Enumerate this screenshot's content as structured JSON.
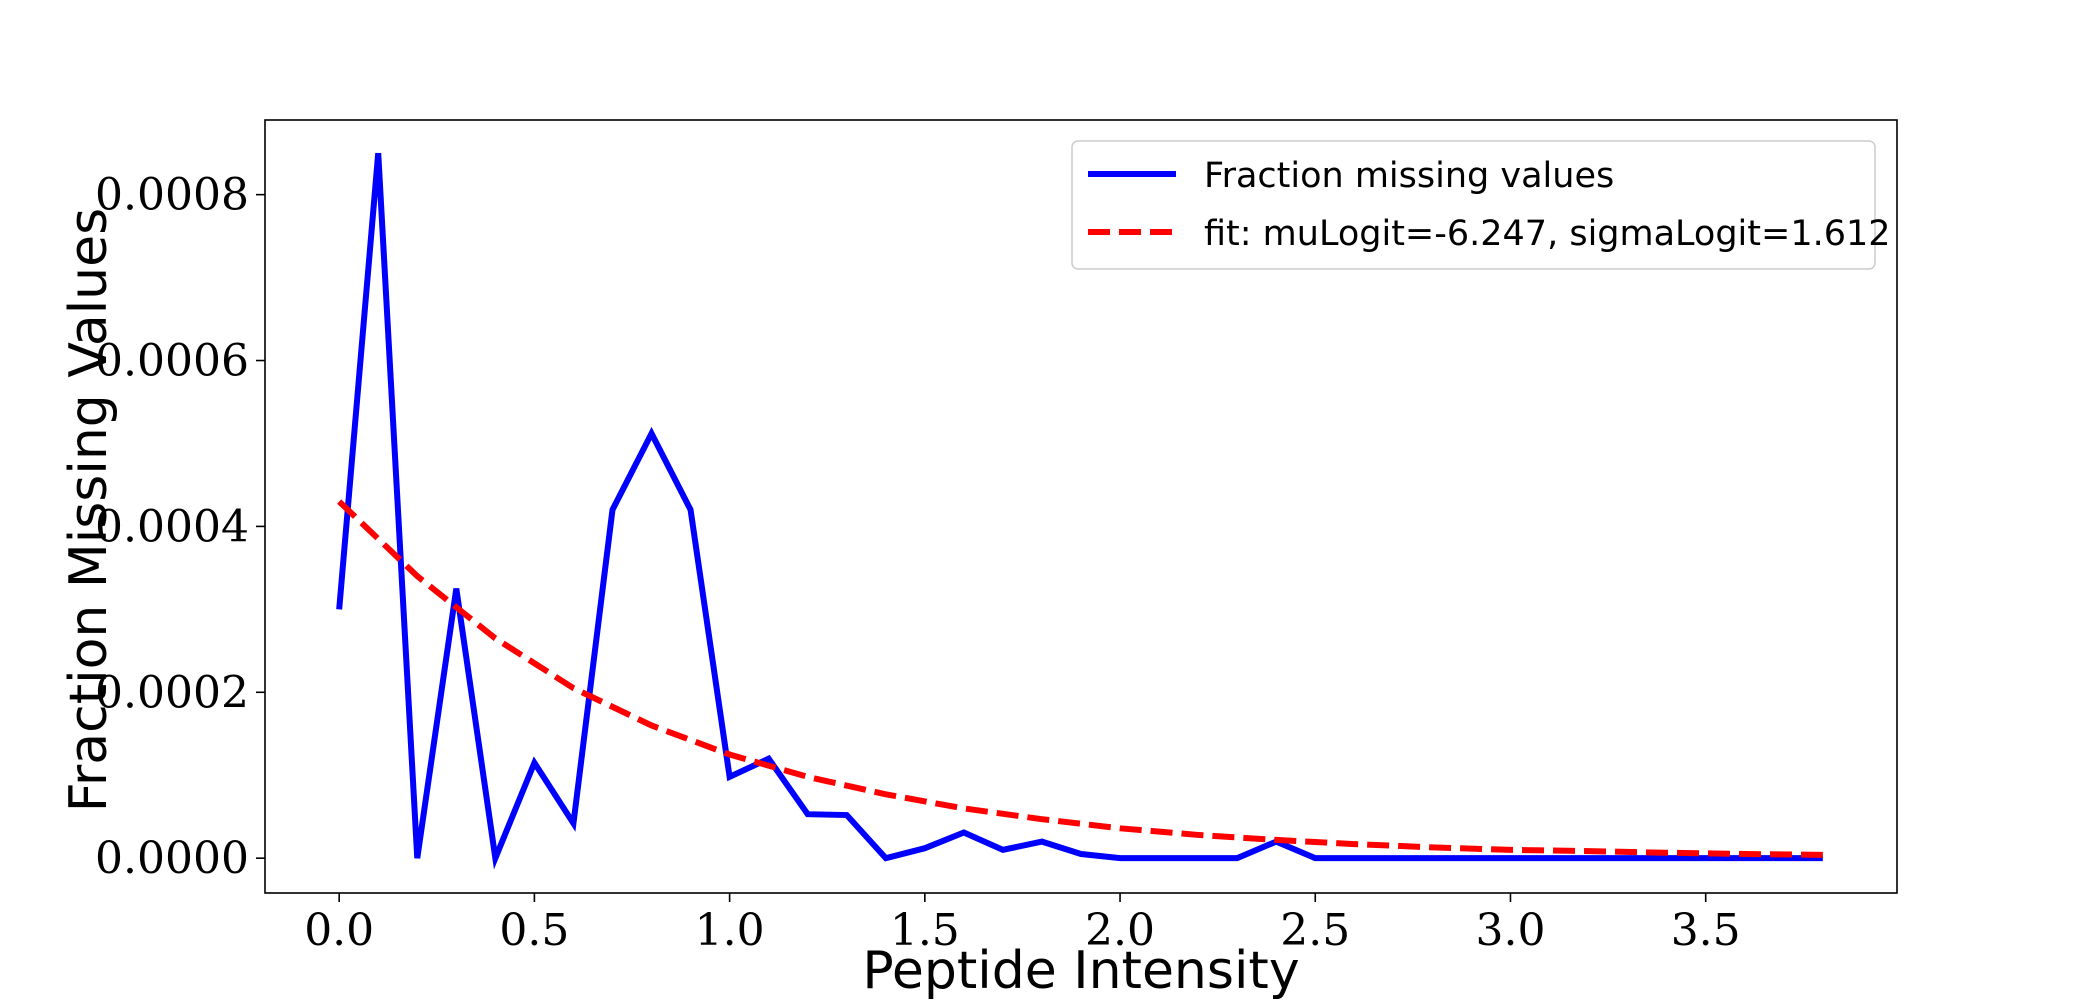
{
  "chart_data": {
    "type": "line",
    "title": "",
    "xlabel": "Peptide Intensity",
    "ylabel": "Fraction Missing Values",
    "xlim": [
      -0.19,
      3.99
    ],
    "ylim": [
      -4.2e-05,
      0.00089
    ],
    "xticks": [
      0.0,
      0.5,
      1.0,
      1.5,
      2.0,
      2.5,
      3.0,
      3.5
    ],
    "xtick_labels": [
      "0.0",
      "0.5",
      "1.0",
      "1.5",
      "2.0",
      "2.5",
      "3.0",
      "3.5"
    ],
    "yticks": [
      0.0,
      0.0002,
      0.0004,
      0.0006,
      0.0008
    ],
    "ytick_labels": [
      "0.0000",
      "0.0002",
      "0.0004",
      "0.0006",
      "0.0008"
    ],
    "grid": false,
    "legend_position": "top-right",
    "series": [
      {
        "name": "Fraction missing values",
        "color": "#0000ff",
        "style": "solid",
        "x": [
          0.0,
          0.1,
          0.2,
          0.3,
          0.4,
          0.5,
          0.6,
          0.7,
          0.8,
          0.9,
          1.0,
          1.1,
          1.2,
          1.3,
          1.4,
          1.5,
          1.6,
          1.7,
          1.8,
          1.9,
          2.0,
          2.1,
          2.2,
          2.3,
          2.4,
          2.5,
          2.6,
          2.7,
          2.8,
          2.9,
          3.0,
          3.1,
          3.2,
          3.3,
          3.4,
          3.5,
          3.6,
          3.7,
          3.8
        ],
        "y": [
          0.0003,
          0.00085,
          0.0,
          0.000325,
          0.0,
          0.000115,
          4.2e-05,
          0.00042,
          0.000512,
          0.00042,
          9.8e-05,
          0.00012,
          5.3e-05,
          5.2e-05,
          0.0,
          1.2e-05,
          3.1e-05,
          1e-05,
          2e-05,
          5e-06,
          0.0,
          0.0,
          0.0,
          0.0,
          2e-05,
          0.0,
          0.0,
          0.0,
          0.0,
          0.0,
          0.0,
          0.0,
          0.0,
          0.0,
          0.0,
          0.0,
          0.0,
          0.0,
          0.0
        ]
      },
      {
        "name": "fit: muLogit=-6.247, sigmaLogit=1.612",
        "color": "#ff0000",
        "style": "dashed",
        "x": [
          0.0,
          0.2,
          0.4,
          0.6,
          0.8,
          1.0,
          1.2,
          1.4,
          1.6,
          1.8,
          2.0,
          2.2,
          2.4,
          2.6,
          2.8,
          3.0,
          3.2,
          3.4,
          3.6,
          3.8
        ],
        "y": [
          0.00043,
          0.00034,
          0.000265,
          0.000205,
          0.00016,
          0.000125,
          9.8e-05,
          7.7e-05,
          6e-05,
          4.7e-05,
          3.6e-05,
          2.8e-05,
          2.2e-05,
          1.7e-05,
          1.3e-05,
          1e-05,
          8.5e-06,
          6.5e-06,
          5e-06,
          4e-06
        ]
      }
    ]
  }
}
